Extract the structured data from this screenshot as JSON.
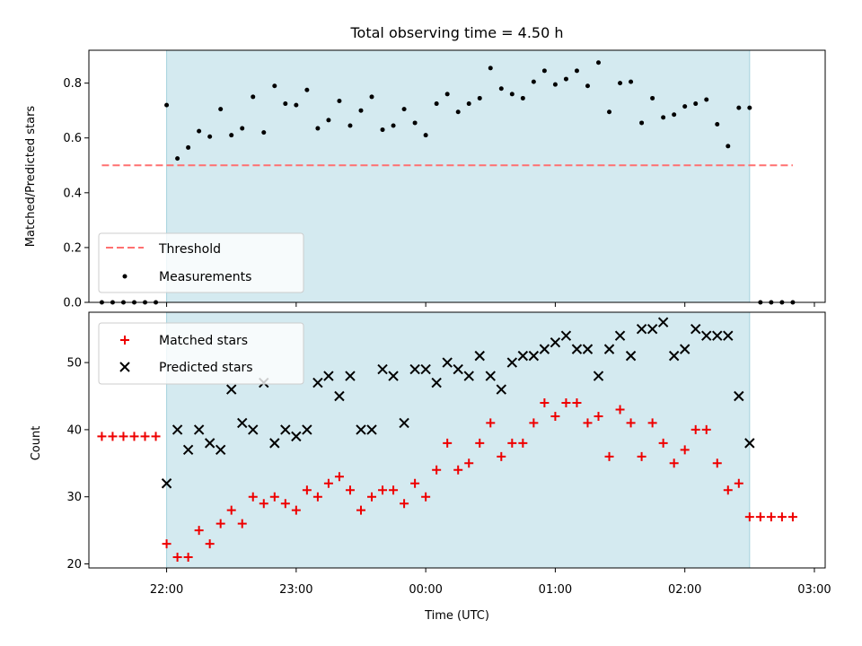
{
  "chart_data": {
    "type": "scatter",
    "title": "Total observing time = 4.50 h",
    "xlabel": "Time (UTC)",
    "x_ticks": [
      "22:00",
      "23:00",
      "00:00",
      "01:00",
      "02:00",
      "03:00"
    ],
    "x_range": [
      "21:24",
      "03:05"
    ],
    "observing_window": [
      "22:00",
      "02:30"
    ],
    "colors": {
      "window": "#d4eaf0",
      "window_edge": "#a6d3de",
      "threshold": "#ff7070",
      "measurements": "#000000",
      "matched": "#ee0000",
      "predicted": "#000000"
    },
    "top": {
      "ylabel": "Matched/Predicted stars",
      "ylim": [
        0,
        0.92
      ],
      "y_ticks": [
        "0.0",
        "0.2",
        "0.4",
        "0.6",
        "0.8"
      ],
      "threshold": {
        "value": 0.5,
        "x_start": "21:30",
        "x_end": "02:50"
      },
      "legend": [
        "Threshold",
        "Measurements"
      ],
      "legend_loc": "lower left",
      "x": [
        "21:30",
        "21:35",
        "21:40",
        "21:45",
        "21:50",
        "21:55",
        "22:00",
        "22:05",
        "22:10",
        "22:15",
        "22:20",
        "22:25",
        "22:30",
        "22:35",
        "22:40",
        "22:45",
        "22:50",
        "22:55",
        "23:00",
        "23:05",
        "23:10",
        "23:15",
        "23:20",
        "23:25",
        "23:30",
        "23:35",
        "23:40",
        "23:45",
        "23:50",
        "23:55",
        "00:00",
        "00:05",
        "00:10",
        "00:15",
        "00:20",
        "00:25",
        "00:30",
        "00:35",
        "00:40",
        "00:45",
        "00:50",
        "00:55",
        "01:00",
        "01:05",
        "01:10",
        "01:15",
        "01:20",
        "01:25",
        "01:30",
        "01:35",
        "01:40",
        "01:45",
        "01:50",
        "01:55",
        "02:00",
        "02:05",
        "02:10",
        "02:15",
        "02:20",
        "02:25",
        "02:30",
        "02:35",
        "02:40",
        "02:45",
        "02:50"
      ],
      "measurements": [
        0,
        0,
        0,
        0,
        0,
        0,
        0.72,
        0.525,
        0.565,
        0.625,
        0.605,
        0.705,
        0.61,
        0.635,
        0.75,
        0.62,
        0.79,
        0.725,
        0.72,
        0.775,
        0.635,
        0.665,
        0.735,
        0.645,
        0.7,
        0.75,
        0.63,
        0.645,
        0.705,
        0.655,
        0.61,
        0.725,
        0.76,
        0.695,
        0.725,
        0.745,
        0.855,
        0.78,
        0.76,
        0.745,
        0.805,
        0.845,
        0.795,
        0.815,
        0.845,
        0.79,
        0.875,
        0.695,
        0.8,
        0.805,
        0.655,
        0.745,
        0.675,
        0.685,
        0.715,
        0.725,
        0.74,
        0.65,
        0.57,
        0.71,
        0.71,
        0,
        0,
        0,
        0
      ]
    },
    "bottom": {
      "ylabel": "Count",
      "ylim": [
        19.4,
        57.5
      ],
      "y_ticks": [
        "20",
        "30",
        "40",
        "50"
      ],
      "legend": [
        "Matched stars",
        "Predicted stars"
      ],
      "legend_loc": "upper left",
      "series": [
        {
          "name": "Matched stars",
          "x": [
            "21:30",
            "21:35",
            "21:40",
            "21:45",
            "21:50",
            "21:55",
            "22:00",
            "22:05",
            "22:10",
            "22:15",
            "22:20",
            "22:25",
            "22:30",
            "22:35",
            "22:40",
            "22:45",
            "22:50",
            "22:55",
            "23:00",
            "23:05",
            "23:10",
            "23:15",
            "23:20",
            "23:25",
            "23:30",
            "23:35",
            "23:40",
            "23:45",
            "23:50",
            "23:55",
            "00:00",
            "00:05",
            "00:10",
            "00:15",
            "00:20",
            "00:25",
            "00:30",
            "00:35",
            "00:40",
            "00:45",
            "00:50",
            "00:55",
            "01:00",
            "01:05",
            "01:10",
            "01:15",
            "01:20",
            "01:25",
            "01:30",
            "01:35",
            "01:40",
            "01:45",
            "01:50",
            "01:55",
            "02:00",
            "02:05",
            "02:10",
            "02:15",
            "02:20",
            "02:25",
            "02:30",
            "02:35",
            "02:40",
            "02:45",
            "02:50"
          ],
          "values": [
            39,
            39,
            39,
            39,
            39,
            39,
            23,
            21,
            21,
            25,
            23,
            26,
            28,
            26,
            30,
            29,
            30,
            29,
            28,
            31,
            30,
            32,
            33,
            31,
            28,
            30,
            31,
            31,
            29,
            32,
            30,
            34,
            38,
            34,
            35,
            38,
            41,
            36,
            38,
            38,
            41,
            44,
            42,
            44,
            44,
            41,
            42,
            36,
            43,
            41,
            36,
            41,
            38,
            35,
            37,
            40,
            40,
            35,
            31,
            32,
            27,
            27,
            27,
            27,
            27
          ]
        },
        {
          "name": "Predicted stars",
          "x": [
            "22:00",
            "22:05",
            "22:10",
            "22:15",
            "22:20",
            "22:25",
            "22:30",
            "22:35",
            "22:40",
            "22:45",
            "22:50",
            "22:55",
            "23:00",
            "23:05",
            "23:10",
            "23:15",
            "23:20",
            "23:25",
            "23:30",
            "23:35",
            "23:40",
            "23:45",
            "23:50",
            "23:55",
            "00:00",
            "00:05",
            "00:10",
            "00:15",
            "00:20",
            "00:25",
            "00:30",
            "00:35",
            "00:40",
            "00:45",
            "00:50",
            "00:55",
            "01:00",
            "01:05",
            "01:10",
            "01:15",
            "01:20",
            "01:25",
            "01:30",
            "01:35",
            "01:40",
            "01:45",
            "01:50",
            "01:55",
            "02:00",
            "02:05",
            "02:10",
            "02:15",
            "02:20",
            "02:25",
            "02:30"
          ],
          "values": [
            32,
            40,
            37,
            40,
            38,
            37,
            46,
            41,
            40,
            47,
            38,
            40,
            39,
            40,
            47,
            48,
            45,
            48,
            40,
            40,
            49,
            48,
            41,
            49,
            49,
            47,
            50,
            49,
            48,
            51,
            48,
            46,
            50,
            51,
            51,
            52,
            53,
            54,
            52,
            52,
            48,
            52,
            54,
            51,
            55,
            55,
            56,
            51,
            52,
            55,
            54,
            54,
            54,
            45,
            38
          ]
        }
      ]
    }
  }
}
